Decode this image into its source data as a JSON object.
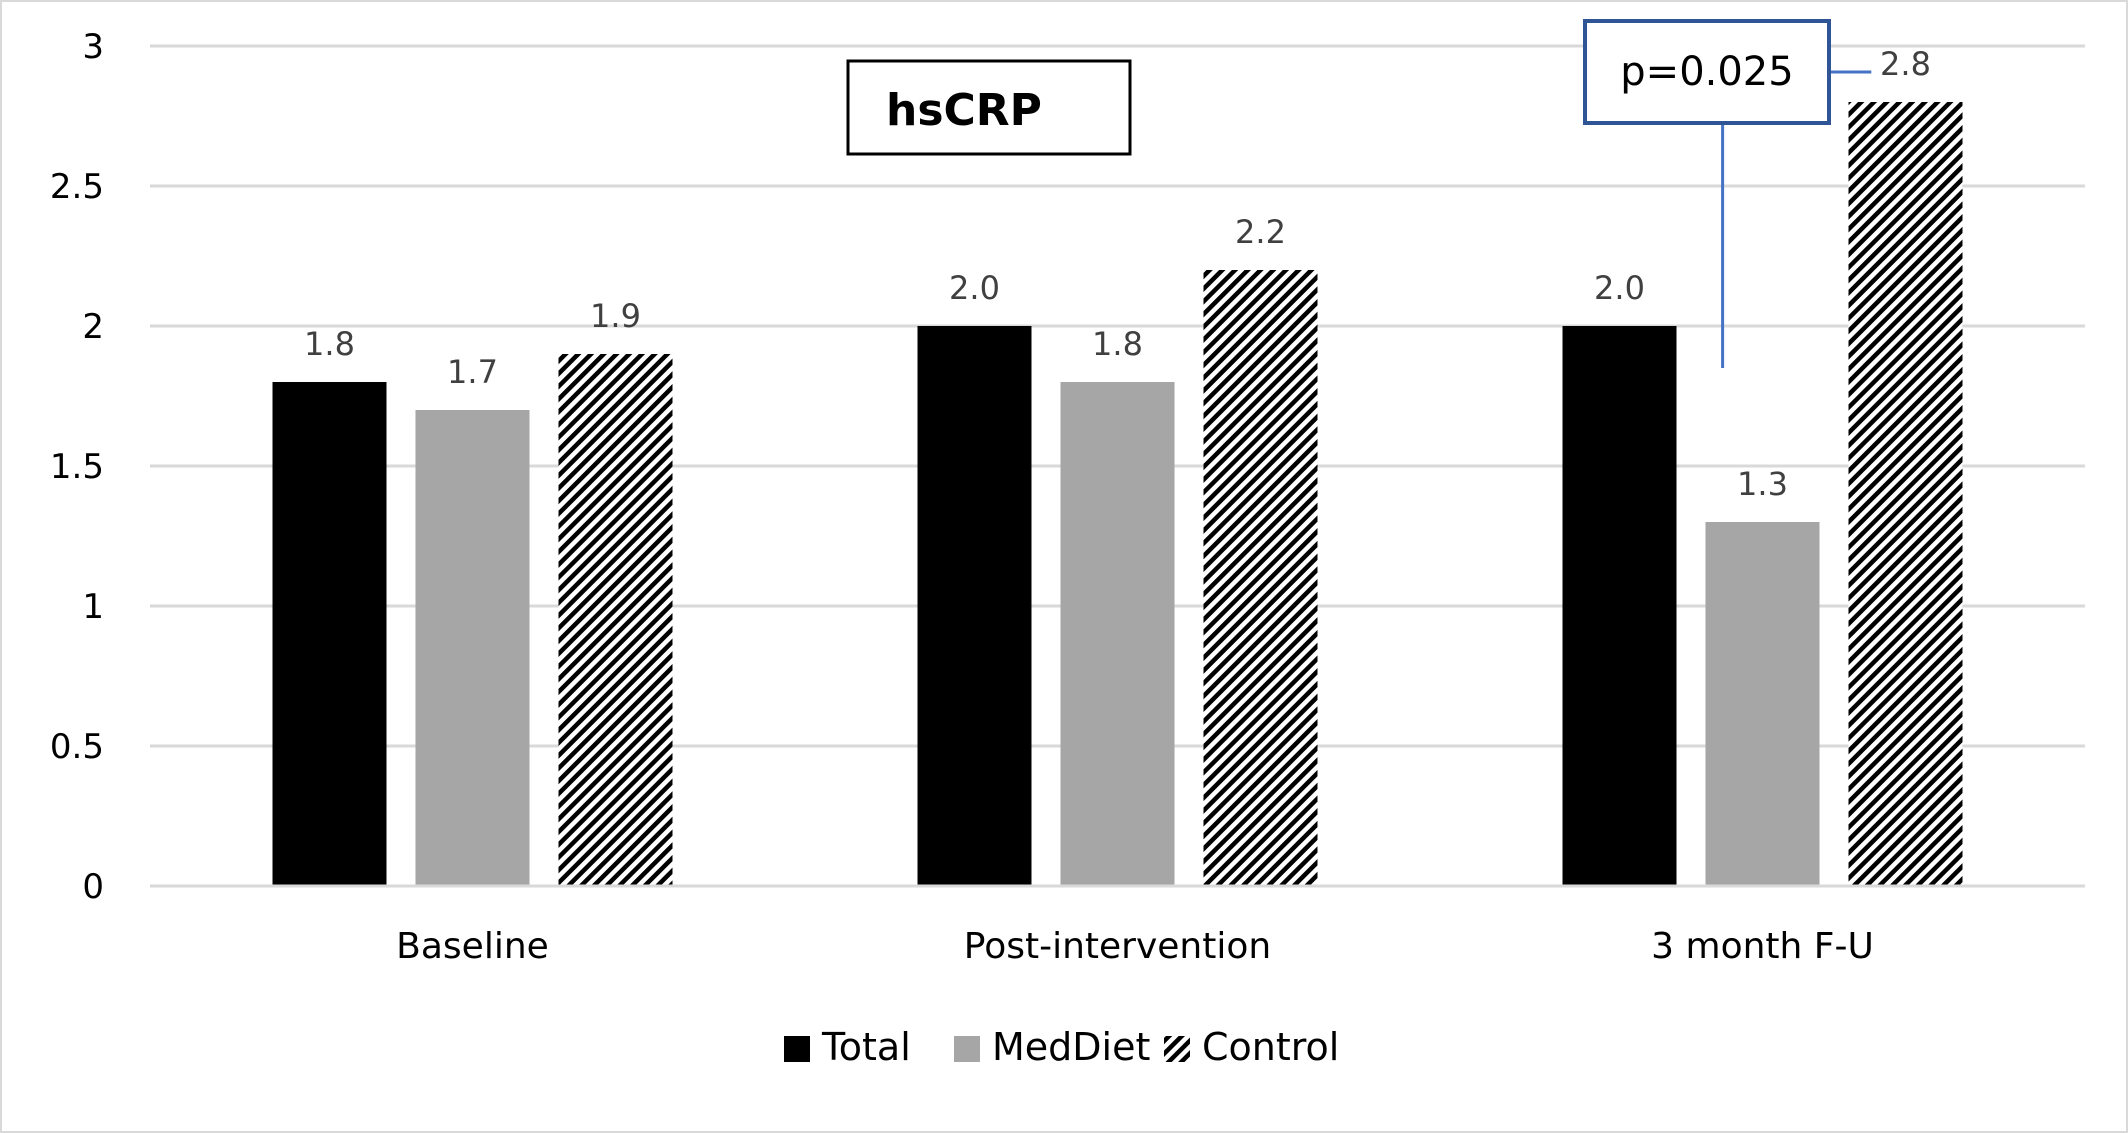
{
  "chart_data": {
    "type": "bar",
    "title": "hsCRP",
    "categories": [
      "Baseline",
      "Post-intervention",
      "3 month F-U"
    ],
    "series": [
      {
        "name": "Total",
        "values": [
          1.8,
          2.0,
          2.0
        ],
        "data_labels": [
          "1.8",
          "2.0",
          "2.0"
        ],
        "color": "#000000",
        "fill": "solid"
      },
      {
        "name": "MedDiet",
        "values": [
          1.7,
          1.8,
          1.3
        ],
        "data_labels": [
          "1.7",
          "1.8",
          "1.3"
        ],
        "color": "#a6a6a6",
        "fill": "solid"
      },
      {
        "name": "Control",
        "values": [
          1.9,
          2.2,
          2.8
        ],
        "data_labels": [
          "1.9",
          "2.2",
          "2.8"
        ],
        "color": "#000000",
        "fill": "diagonal-stripes"
      }
    ],
    "ylim": [
      0,
      3
    ],
    "yticks": [
      0,
      0.5,
      1,
      1.5,
      2,
      2.5,
      3
    ],
    "ytick_labels": [
      "0",
      "0.5",
      "1",
      "1.5",
      "2",
      "2.5",
      "3"
    ],
    "xlabel": "",
    "ylabel": "",
    "grid": true,
    "legend_position": "bottom-center",
    "annotation": {
      "text": "p=0.025",
      "category": "3 month F-U",
      "connects": [
        "MedDiet",
        "Control"
      ],
      "border_color": "#2f5597",
      "line_color": "#4472c4"
    }
  }
}
